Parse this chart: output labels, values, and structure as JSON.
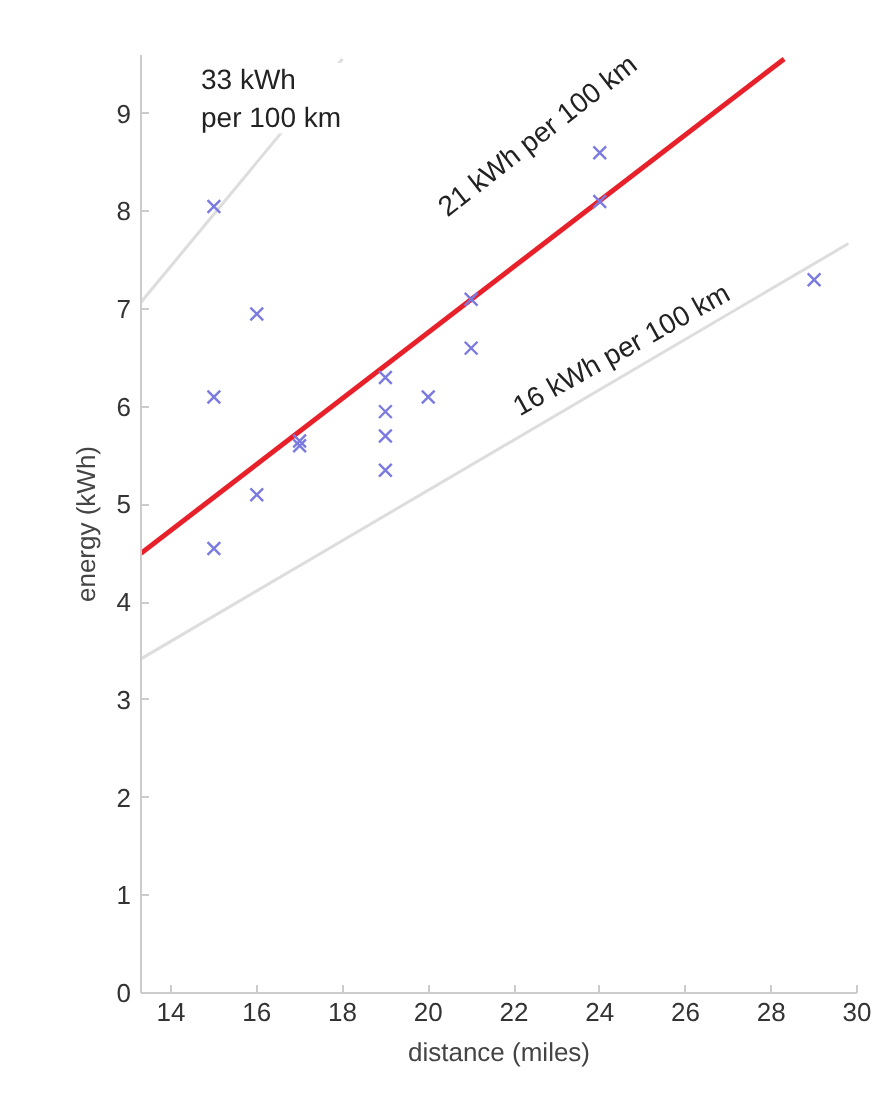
{
  "chart_data": {
    "type": "scatter",
    "xlabel": "distance (miles)",
    "ylabel": "energy (kWh)",
    "xlim": [
      13.3,
      30
    ],
    "ylim": [
      0,
      9.6
    ],
    "xticks": [
      14,
      16,
      18,
      20,
      22,
      24,
      26,
      28,
      30
    ],
    "yticks": [
      0,
      1,
      2,
      3,
      4,
      5,
      6,
      7,
      8,
      9
    ],
    "grid": false,
    "marker": "cross",
    "series": [
      {
        "type": "line",
        "marker": "none",
        "color": "#dddddd",
        "x": [
          13.3,
          18
        ],
        "values": [
          7.07,
          9.56
        ]
      },
      {
        "type": "line",
        "marker": "none",
        "color": "#dddddd",
        "x": [
          13.3,
          29.8
        ],
        "values": [
          3.42,
          7.67
        ]
      },
      {
        "type": "line",
        "marker": "none",
        "color": "#e8202a",
        "x": [
          13.3,
          28.3
        ],
        "values": [
          4.5,
          9.56
        ]
      },
      {
        "color": "#7a7ae0",
        "x": [
          15,
          15,
          15,
          16,
          16,
          17,
          17,
          19,
          19,
          19,
          19,
          20,
          21,
          21,
          24,
          24,
          29
        ],
        "values": [
          8.05,
          6.1,
          4.55,
          6.95,
          5.1,
          5.6,
          5.65,
          6.3,
          5.95,
          5.7,
          5.35,
          6.1,
          7.1,
          6.6,
          8.6,
          8.1,
          7.3
        ]
      }
    ],
    "annotations": [
      "33 kWh\nper 100 km",
      "21 kWh per 100 km",
      "16 kWh per 100 km"
    ]
  }
}
